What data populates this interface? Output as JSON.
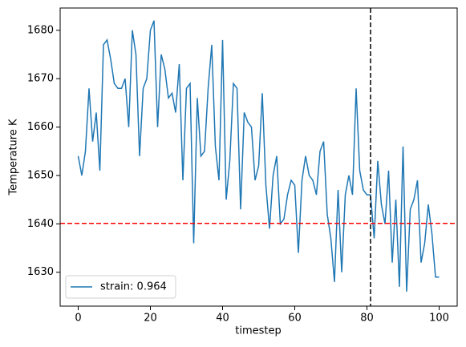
{
  "chart_data": {
    "type": "line",
    "xlabel": "timestep",
    "ylabel": "Temperature K",
    "x": [
      0,
      1,
      2,
      3,
      4,
      5,
      6,
      7,
      8,
      9,
      10,
      11,
      12,
      13,
      14,
      15,
      16,
      17,
      18,
      19,
      20,
      21,
      22,
      23,
      24,
      25,
      26,
      27,
      28,
      29,
      30,
      31,
      32,
      33,
      34,
      35,
      36,
      37,
      38,
      39,
      40,
      41,
      42,
      43,
      44,
      45,
      46,
      47,
      48,
      49,
      50,
      51,
      52,
      53,
      54,
      55,
      56,
      57,
      58,
      59,
      60,
      61,
      62,
      63,
      64,
      65,
      66,
      67,
      68,
      69,
      70,
      71,
      72,
      73,
      74,
      75,
      76,
      77,
      78,
      79,
      80,
      81,
      82,
      83,
      84,
      85,
      86,
      87,
      88,
      89,
      90,
      91,
      92,
      93,
      94,
      95,
      96,
      97,
      98,
      99,
      100
    ],
    "series": [
      {
        "name": "strain: 0.964",
        "color": "#1f77b4",
        "values": [
          1654,
          1650,
          1655,
          1668,
          1657,
          1663,
          1651,
          1677,
          1678,
          1674,
          1669,
          1668,
          1668,
          1670,
          1660,
          1680,
          1675,
          1654,
          1668,
          1670,
          1680,
          1682,
          1660,
          1675,
          1672,
          1666,
          1667,
          1663,
          1673,
          1649,
          1668,
          1669,
          1636,
          1666,
          1654,
          1655,
          1668,
          1677,
          1656,
          1649,
          1678,
          1645,
          1653,
          1669,
          1668,
          1643,
          1663,
          1661,
          1660,
          1649,
          1652,
          1667,
          1648,
          1639,
          1650,
          1654,
          1640,
          1641,
          1646,
          1649,
          1648,
          1634,
          1649,
          1654,
          1650,
          1649,
          1646,
          1655,
          1657,
          1642,
          1637,
          1628,
          1647,
          1630,
          1646,
          1650,
          1646,
          1668,
          1651,
          1647,
          1646,
          1646,
          1637,
          1653,
          1644,
          1640,
          1651,
          1632,
          1645,
          1627,
          1656,
          1626,
          1643,
          1645,
          1649,
          1632,
          1636,
          1644,
          1638,
          1629,
          1629
        ]
      }
    ],
    "hline": {
      "value": 1640.1,
      "color": "#ff0000"
    },
    "vline": {
      "value": 81,
      "color": "#000000"
    },
    "xlim": [
      -5,
      105
    ],
    "xticks": [
      0,
      20,
      40,
      60,
      80,
      100
    ],
    "ylim": [
      1623,
      1684.6
    ],
    "yticks": [
      1630,
      1640,
      1650,
      1660,
      1670,
      1680
    ],
    "legend": "lower left"
  }
}
